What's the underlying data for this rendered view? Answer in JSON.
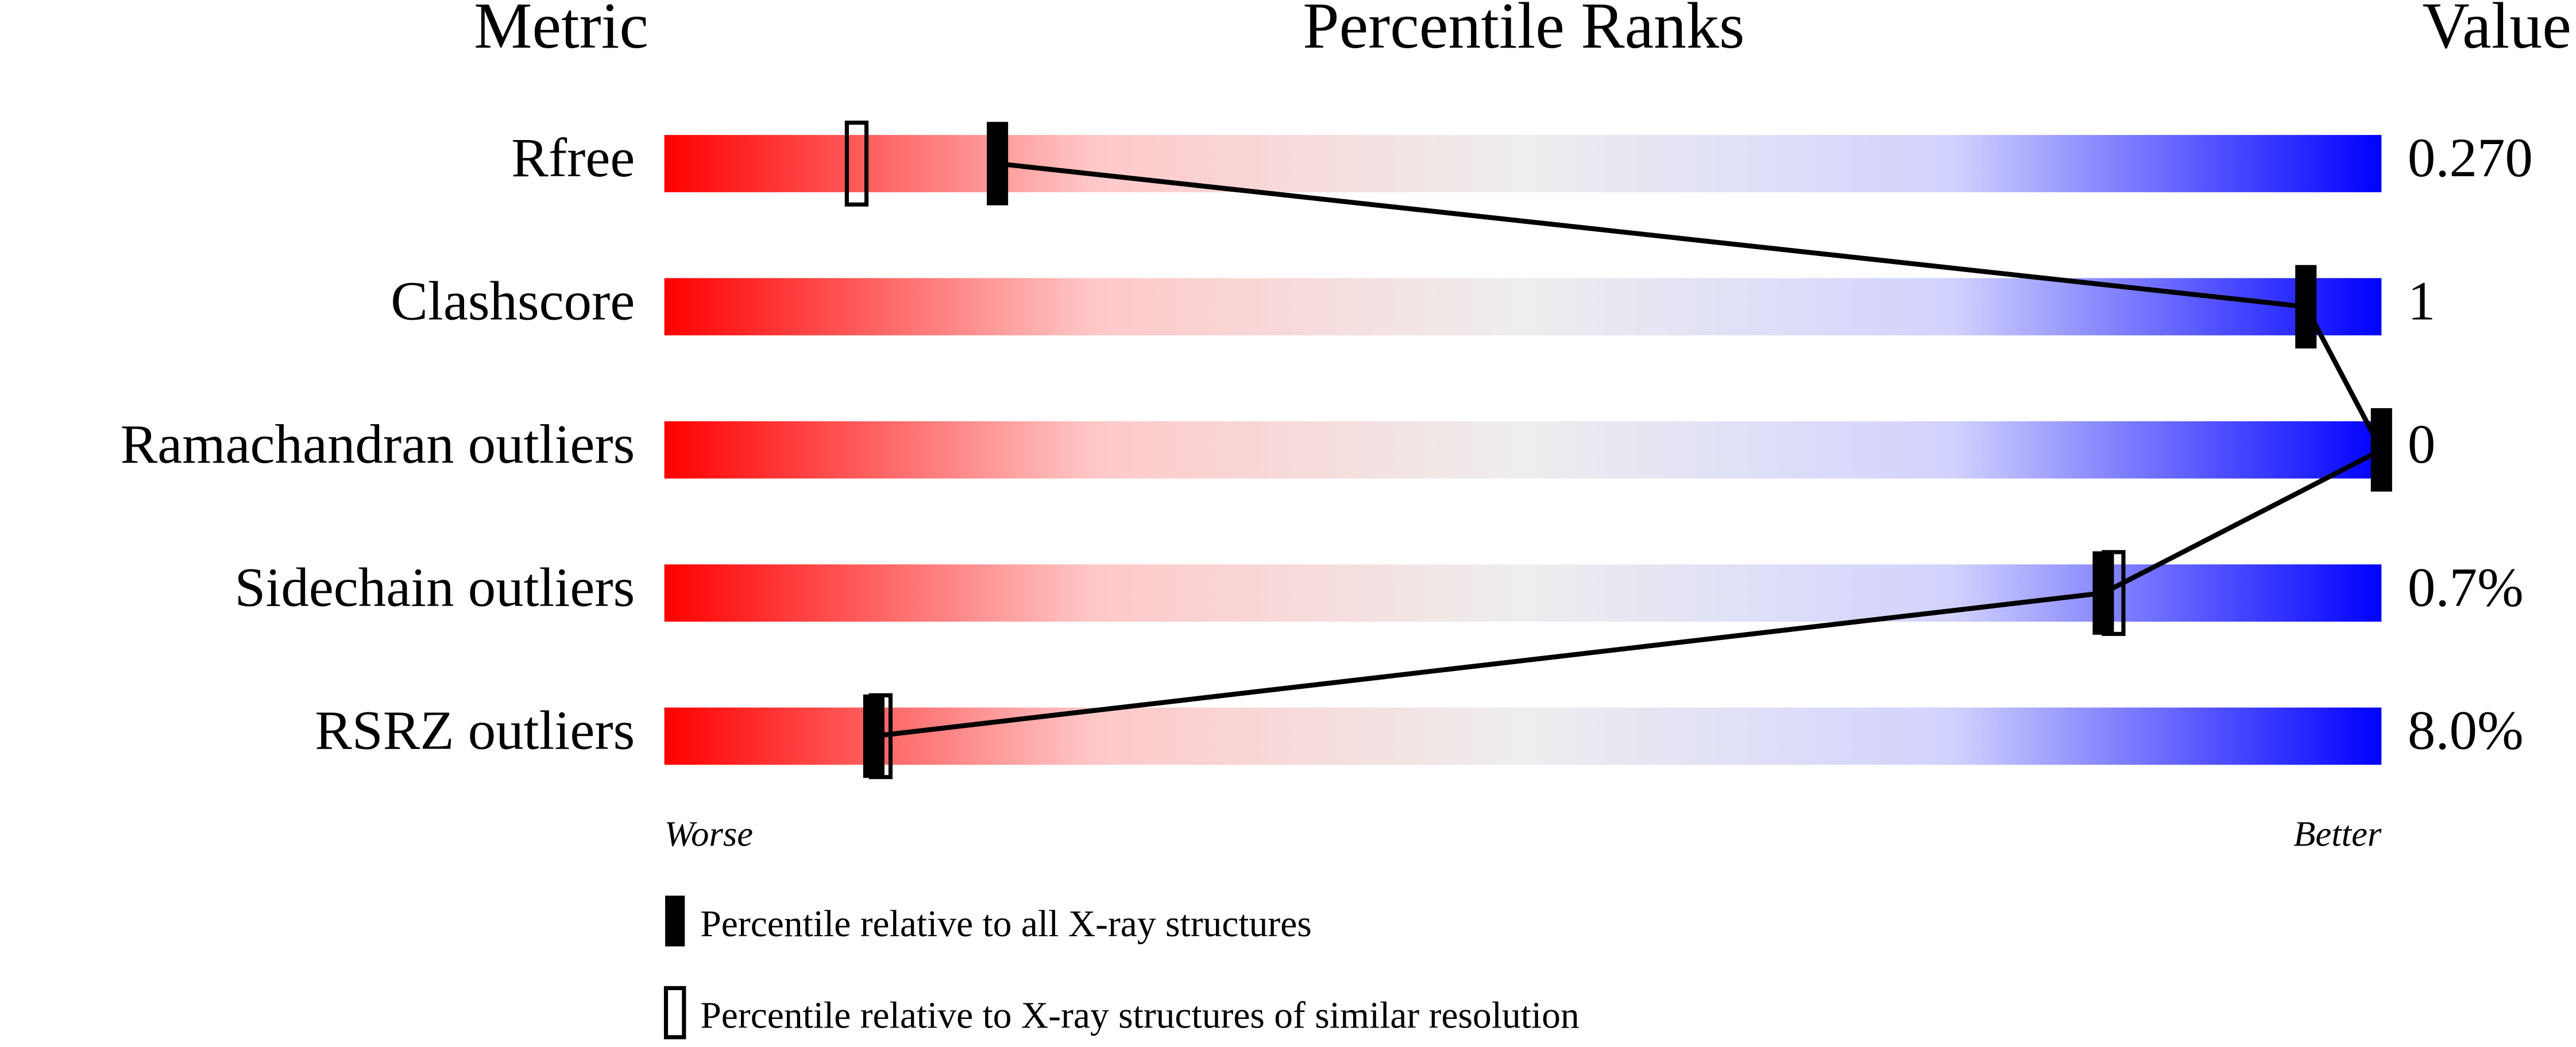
{
  "chart_data": {
    "type": "slider",
    "headers": [
      "Metric",
      "Percentile Ranks",
      "Value"
    ],
    "categories": [
      "Rfree",
      "Clashscore",
      "Ramachandran outliers",
      "Sidechain outliers",
      "RSRZ outliers"
    ],
    "metric_values": [
      "0.270",
      "1",
      "0",
      "0.7%",
      "8.0%"
    ],
    "xlim": [
      0,
      100
    ],
    "scale_labels": [
      "Worse",
      "Better"
    ],
    "series": [
      {
        "name": "Percentile relative to all X-ray structures",
        "color": "#000000",
        "marker": "filled",
        "values": [
          19.4,
          95.6,
          100,
          83.8,
          12.2
        ]
      },
      {
        "name": "Percentile relative to X-ray structures of similar resolution",
        "color": "#000000",
        "marker": "open",
        "values": [
          11.2,
          null,
          null,
          84.4,
          12.6
        ]
      }
    ],
    "gradient": [
      "#ff0000",
      "#ffc8c8",
      "#eeeeee",
      "#d2d2ff",
      "#0000ff"
    ]
  }
}
